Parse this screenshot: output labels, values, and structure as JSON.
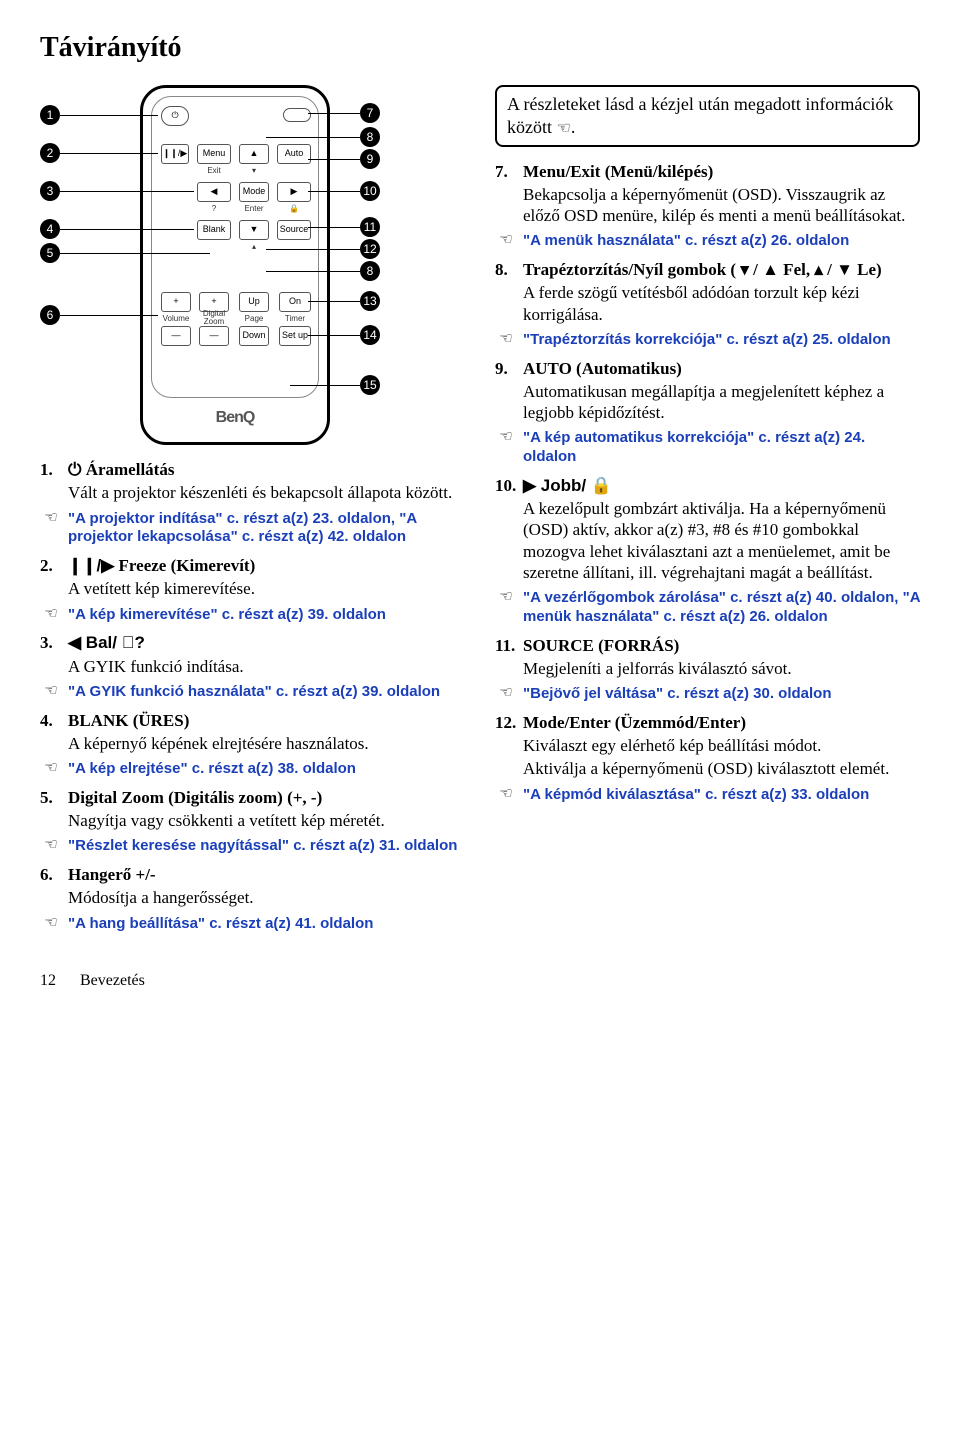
{
  "title": "Távirányító",
  "note_box": "A részleteket lásd a kézjel után megadott információk között",
  "note_box_suffix": ".",
  "brand": "BenQ",
  "footer": {
    "page": "12",
    "section": "Bevezetés"
  },
  "colors": {
    "link": "#1a3fb8",
    "text": "#000000",
    "bg": "#ffffff"
  },
  "remote_labels": {
    "menu": "Menu",
    "exit": "Exit",
    "auto": "Auto",
    "mode": "Mode",
    "enter": "Enter",
    "blank": "Blank",
    "source": "Source",
    "volume": "Volume",
    "digital_zoom": "Digital Zoom",
    "page": "Page",
    "up": "Up",
    "down": "Down",
    "on": "On",
    "timer": "Timer",
    "setup": "Set up"
  },
  "callouts_left": [
    "1",
    "2",
    "3",
    "4",
    "5",
    "6"
  ],
  "callouts_right": [
    "7",
    "8",
    "9",
    "10",
    "11",
    "12",
    "8",
    "13",
    "14",
    "15"
  ],
  "left_items": [
    {
      "num": "1.",
      "prefix_sym": "⏻",
      "title": " Áramellátás",
      "desc": "Vált a projektor készenléti és bekapcsolt állapota között.",
      "ref": "\"A projektor indítása\" c. részt a(z) 23. oldalon, \"A projektor lekapcsolása\" c. részt a(z) 42. oldalon"
    },
    {
      "num": "2.",
      "prefix_sym": "❙❙/▶",
      "title": "Freeze (Kimerevít)",
      "desc": "A vetített kép kimerevítése.",
      "ref": "\"A kép kimerevítése\" c. részt a(z) 39. oldalon"
    },
    {
      "num": "3.",
      "prefix_sym": "◀ Bal/ ⃝?",
      "title": "",
      "desc": "A GYIK funkció indítása.",
      "ref": "\"A GYIK funkció használata\" c. részt a(z) 39. oldalon"
    },
    {
      "num": "4.",
      "title": "BLANK (ÜRES)",
      "desc": "A képernyő képének elrejtésére használatos.",
      "ref": "\"A kép elrejtése\" c. részt a(z) 38. oldalon"
    },
    {
      "num": "5.",
      "title": "Digital Zoom (Digitális zoom) (+, -)",
      "desc": "Nagyítja vagy csökkenti a vetített kép méretét.",
      "ref": "\"Részlet keresése nagyítással\" c. részt a(z) 31. oldalon"
    },
    {
      "num": "6.",
      "title": "Hangerő +/-",
      "desc": "Módosítja a hangerősséget.",
      "ref": "\"A hang beállítása\" c. részt a(z) 41. oldalon"
    }
  ],
  "right_items": [
    {
      "num": "7.",
      "title": "Menu/Exit (Menü/kilépés)",
      "desc": "Bekapcsolja a képernyőmenüt (OSD). Visszaugrik az előző OSD menüre, kilép és menti a menü beállításokat.",
      "ref": "\"A menük használata\" c. részt a(z) 26. oldalon"
    },
    {
      "num": "8.",
      "title": "Trapéztorzítás/Nyíl gombok ( ▾ / ▲ Fel, ▴ / ▼ Le)",
      "desc": "A ferde szögű vetítésből adódóan torzult kép kézi korrigálása.",
      "ref": "\"Trapéztorzítás korrekciója\" c. részt a(z) 25. oldalon"
    },
    {
      "num": "9.",
      "title": "AUTO (Automatikus)",
      "desc": "Automatikusan megállapítja a megjelenített képhez a legjobb képidőzítést.",
      "ref": "\"A kép automatikus korrekciója\" c. részt a(z) 24. oldalon"
    },
    {
      "num": "10.",
      "prefix_sym": "▶ Jobb/ 🔒",
      "title": "",
      "desc": "A kezelőpult gombzárt aktiválja. Ha a képernyőmenü (OSD) aktív, akkor a(z) #3, #8 és #10 gombokkal mozogva lehet kiválasztani azt a menüelemet, amit be szeretne állítani, ill. végrehajtani magát a beállítást.",
      "ref": "\"A vezérlőgombok zárolása\" c. részt a(z) 40. oldalon, \"A menük használata\" c. részt a(z) 26. oldalon"
    },
    {
      "num": "11.",
      "title": "SOURCE (FORRÁS)",
      "desc": "Megjeleníti a jelforrás kiválasztó sávot.",
      "ref": "\"Bejövő jel váltása\" c. részt a(z) 30. oldalon"
    },
    {
      "num": "12.",
      "title": "Mode/Enter (Üzemmód/Enter)",
      "desc": "Kiválaszt egy elérhető kép beállítási módot.\nAktiválja a képernyőmenü (OSD) kiválasztott elemét.",
      "ref": "\"A képmód kiválasztása\" c. részt a(z) 33. oldalon"
    }
  ]
}
